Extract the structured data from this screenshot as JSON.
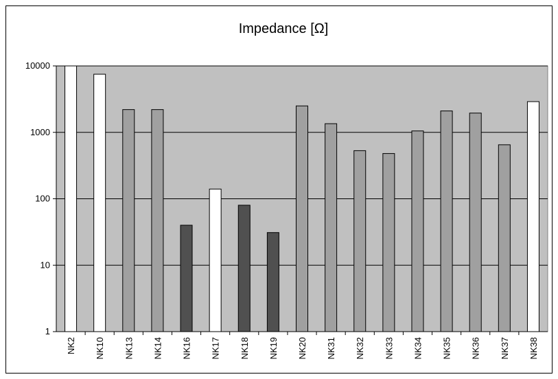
{
  "chart_data": {
    "type": "bar",
    "title": "Impedance [Ω]",
    "xlabel": "",
    "ylabel": "",
    "y_scale": "log",
    "ylim": [
      1,
      10000
    ],
    "y_ticks": [
      "1",
      "10",
      "100",
      "1000",
      "10000"
    ],
    "grid": true,
    "legend": "none",
    "categories": [
      "NK2",
      "NK10",
      "NK13",
      "NK14",
      "NK16",
      "NK17",
      "NK18",
      "NK19",
      "NK20",
      "NK31",
      "NK32",
      "NK33",
      "NK34",
      "NK35",
      "NK36",
      "NK37",
      "NK38"
    ],
    "values": [
      10000,
      7500,
      2200,
      2200,
      40,
      140,
      80,
      31,
      2500,
      1350,
      530,
      480,
      1050,
      2100,
      1950,
      650,
      2900
    ],
    "bar_colors": [
      "#ffffff",
      "#ffffff",
      "#a0a0a0",
      "#a0a0a0",
      "#505050",
      "#ffffff",
      "#505050",
      "#505050",
      "#a0a0a0",
      "#a0a0a0",
      "#a0a0a0",
      "#a0a0a0",
      "#a0a0a0",
      "#a0a0a0",
      "#a0a0a0",
      "#a0a0a0",
      "#ffffff"
    ],
    "plot_background": "#c0c0c0"
  }
}
